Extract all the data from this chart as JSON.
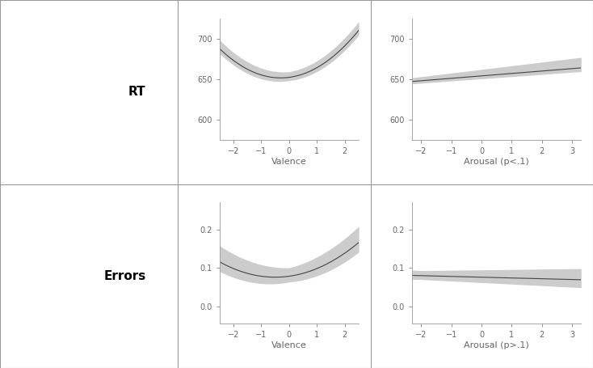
{
  "panel_labels": [
    "RT",
    "Errors"
  ],
  "col1_xlabel": "Valence",
  "col2_xlabel_row1": "Arousal (p<.1)",
  "col2_xlabel_row2": "Arousal (p>.1)",
  "rt_valence_xlim": [
    -2.5,
    2.5
  ],
  "rt_valence_ylim": [
    575,
    725
  ],
  "rt_valence_yticks": [
    600,
    650,
    700
  ],
  "rt_valence_xticks": [
    -2,
    -1,
    0,
    1,
    2
  ],
  "rt_arousal_xlim": [
    -2.3,
    3.3
  ],
  "rt_arousal_ylim": [
    575,
    725
  ],
  "rt_arousal_yticks": [
    600,
    650,
    700
  ],
  "rt_arousal_xticks": [
    -2,
    -1,
    0,
    1,
    2,
    3
  ],
  "err_valence_xlim": [
    -2.5,
    2.5
  ],
  "err_valence_ylim": [
    -0.045,
    0.27
  ],
  "err_valence_yticks": [
    0.0,
    0.1,
    0.2
  ],
  "err_valence_xticks": [
    -2,
    -1,
    0,
    1,
    2
  ],
  "err_arousal_xlim": [
    -2.3,
    3.3
  ],
  "err_arousal_ylim": [
    -0.045,
    0.27
  ],
  "err_arousal_yticks": [
    0.0,
    0.1,
    0.2
  ],
  "err_arousal_xticks": [
    -2,
    -1,
    0,
    1,
    2,
    3
  ],
  "line_color": "#444444",
  "ci_color": "#cccccc",
  "bg_color": "#ffffff",
  "border_color": "#999999",
  "tick_color": "#666666",
  "label_fontsize": 8,
  "tick_fontsize": 7,
  "row_label_fontsize": 11,
  "xlabel_fontsize": 8
}
